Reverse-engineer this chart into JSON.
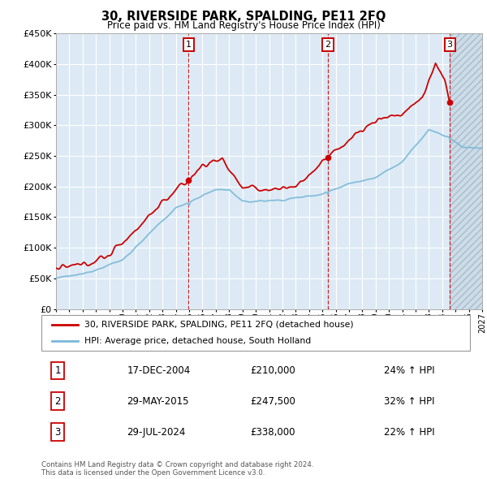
{
  "title": "30, RIVERSIDE PARK, SPALDING, PE11 2FQ",
  "subtitle": "Price paid vs. HM Land Registry's House Price Index (HPI)",
  "hpi_color": "#7ab8d9",
  "price_color": "#cc0000",
  "background_color": "#ddeaf5",
  "ylim": [
    0,
    450000
  ],
  "yticks": [
    0,
    50000,
    100000,
    150000,
    200000,
    250000,
    300000,
    350000,
    400000,
    450000
  ],
  "legend_entry1": "30, RIVERSIDE PARK, SPALDING, PE11 2FQ (detached house)",
  "legend_entry2": "HPI: Average price, detached house, South Holland",
  "sale1_date": "17-DEC-2004",
  "sale1_price": 210000,
  "sale1_hpi": "24% ↑ HPI",
  "sale1_label": "1",
  "sale1_x": 2004.96,
  "sale2_date": "29-MAY-2015",
  "sale2_price": 247500,
  "sale2_hpi": "32% ↑ HPI",
  "sale2_label": "2",
  "sale2_x": 2015.41,
  "sale3_date": "29-JUL-2024",
  "sale3_price": 338000,
  "sale3_hpi": "22% ↑ HPI",
  "sale3_label": "3",
  "sale3_x": 2024.57,
  "copyright": "Contains HM Land Registry data © Crown copyright and database right 2024.\nThis data is licensed under the Open Government Licence v3.0.",
  "xmin": 1995.0,
  "xmax": 2027.0,
  "hatch_start": 2024.57
}
